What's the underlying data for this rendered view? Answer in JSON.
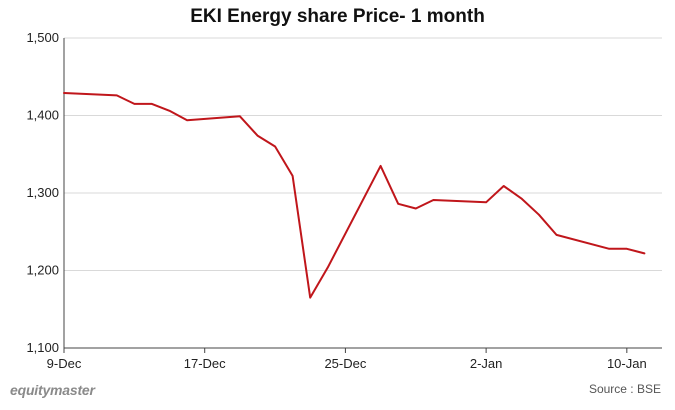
{
  "chart_data": {
    "type": "line",
    "title": "EKI Energy share Price- 1 month",
    "xlabel": "",
    "ylabel": "",
    "ylim": [
      1100,
      1500
    ],
    "yticks": [
      1100,
      1200,
      1300,
      1400,
      1500
    ],
    "ytick_labels": [
      "1,100",
      "1,200",
      "1,300",
      "1,400",
      "1,500"
    ],
    "xlim": [
      "2021-12-09",
      "2022-01-12"
    ],
    "xticks": [
      "2021-12-09",
      "2021-12-17",
      "2021-12-25",
      "2022-01-02",
      "2022-01-10"
    ],
    "xtick_labels": [
      "9-Dec",
      "17-Dec",
      "25-Dec",
      "2-Jan",
      "10-Jan"
    ],
    "grid": true,
    "legend": "none",
    "line_color": "#c0161b",
    "series": [
      {
        "x": [
          "2021-12-09",
          "2021-12-12",
          "2021-12-13",
          "2021-12-14",
          "2021-12-15",
          "2021-12-16",
          "2021-12-19",
          "2021-12-20",
          "2021-12-21",
          "2021-12-22",
          "2021-12-23",
          "2021-12-24",
          "2021-12-27",
          "2021-12-28",
          "2021-12-29",
          "2021-12-30",
          "2021-12-31",
          "2022-01-02",
          "2022-01-03",
          "2022-01-04",
          "2022-01-05",
          "2022-01-06",
          "2022-01-09",
          "2022-01-10",
          "2022-01-11"
        ],
        "values": [
          1429,
          1426,
          1415,
          1415,
          1406,
          1394,
          1399,
          1374,
          1360,
          1322,
          1165,
          1204,
          1335,
          1286,
          1280,
          1291,
          1290,
          1288,
          1309,
          1293,
          1272,
          1246,
          1228,
          1228,
          1222
        ]
      }
    ]
  },
  "footer": {
    "brand": "equitymaster",
    "source": "Source : BSE"
  }
}
